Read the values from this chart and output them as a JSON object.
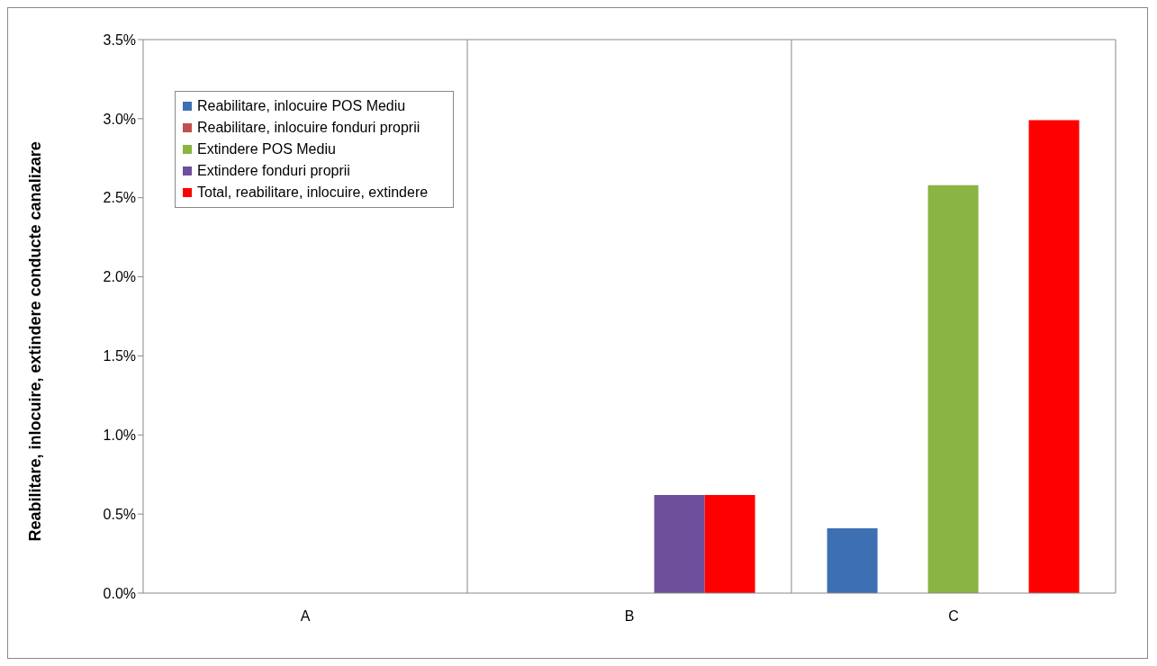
{
  "chart_data": {
    "type": "bar",
    "ylabel": "Reabilitare, inlocuire, extindere conducte canalizare",
    "categories": [
      "A",
      "B",
      "C"
    ],
    "series": [
      {
        "name": "Reabilitare, inlocuire POS Mediu",
        "color": "#3d6fb3",
        "values": [
          null,
          null,
          0.41
        ]
      },
      {
        "name": "Reabilitare, inlocuire fonduri proprii",
        "color": "#c0504d",
        "values": [
          null,
          null,
          null
        ]
      },
      {
        "name": "Extindere POS Mediu",
        "color": "#8ab443",
        "values": [
          null,
          null,
          2.58
        ]
      },
      {
        "name": "Extindere fonduri proprii",
        "color": "#6d4f9c",
        "values": [
          null,
          0.62,
          null
        ]
      },
      {
        "name": "Total, reabilitare, inlocuire, extindere",
        "color": "#ff0000",
        "values": [
          null,
          0.62,
          2.99
        ]
      }
    ],
    "ylim": [
      0,
      3.5
    ],
    "yticks": [
      {
        "value": 0,
        "label": "0.0%"
      },
      {
        "value": 0.5,
        "label": "0.5%"
      },
      {
        "value": 1,
        "label": "1.0%"
      },
      {
        "value": 1.5,
        "label": "1.5%"
      },
      {
        "value": 2,
        "label": "2.0%"
      },
      {
        "value": 2.5,
        "label": "2.5%"
      },
      {
        "value": 3,
        "label": "3.0%"
      },
      {
        "value": 3.5,
        "label": "3.5%"
      }
    ],
    "grid": "x",
    "legend": "top left"
  }
}
